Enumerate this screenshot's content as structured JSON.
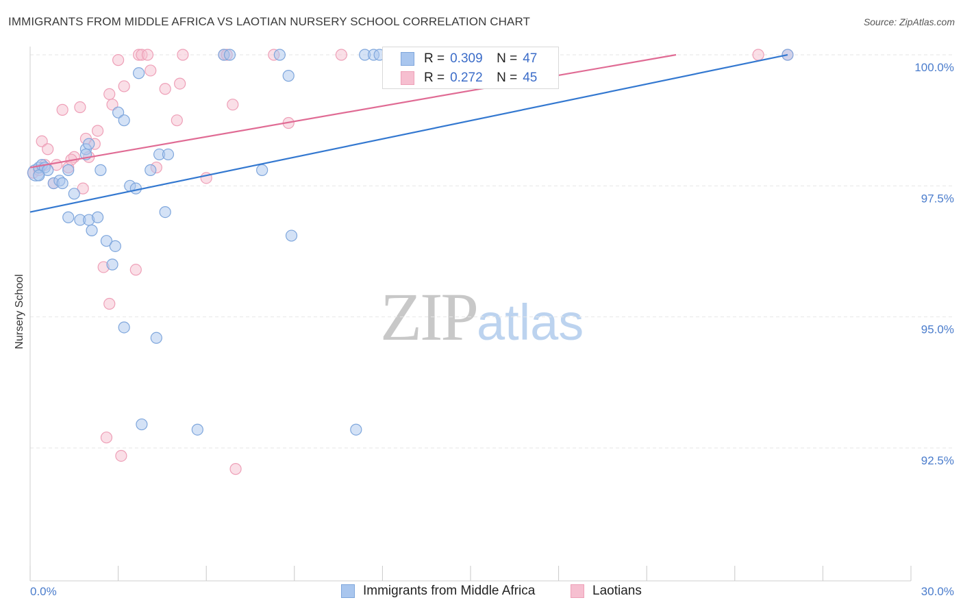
{
  "title": "IMMIGRANTS FROM MIDDLE AFRICA VS LAOTIAN NURSERY SCHOOL CORRELATION CHART",
  "source": "Source: ZipAtlas.com",
  "watermark": {
    "zip": "ZIP",
    "atlas": "atlas"
  },
  "legend": {
    "rows": [
      {
        "r_label": "R =",
        "r": "0.309",
        "n_label": "N =",
        "n": "47"
      },
      {
        "r_label": "R =",
        "r": "0.272",
        "n_label": "N =",
        "n": "45"
      }
    ]
  },
  "bottom_legend": {
    "series1": "Immigrants from Middle Africa",
    "series2": "Laotians"
  },
  "colors": {
    "blue_fill": "#a9c6ee",
    "blue_stroke": "#7ea6dc",
    "blue_line": "#3378d0",
    "pink_fill": "#f6bfd0",
    "pink_stroke": "#ee9fb7",
    "pink_line": "#e06b94",
    "grid": "#e6e6e6",
    "tick_text": "#4a7ccc"
  },
  "chart_data": {
    "type": "scatter",
    "title": "IMMIGRANTS FROM MIDDLE AFRICA VS LAOTIAN NURSERY SCHOOL CORRELATION CHART",
    "xlabel": "",
    "ylabel": "Nursery School",
    "xlim": [
      0,
      30
    ],
    "ylim": [
      90.0,
      100.2
    ],
    "x_tick_labels": [
      "0.0%",
      "30.0%"
    ],
    "y_ticks": [
      92.5,
      95.0,
      97.5,
      100.0
    ],
    "y_tick_labels": [
      "92.5%",
      "95.0%",
      "97.5%",
      "100.0%"
    ],
    "grid": true,
    "legend_position": "top-center",
    "series": [
      {
        "name": "Immigrants from Middle Africa",
        "color": "blue",
        "R": 0.309,
        "N": 47,
        "trend": {
          "x": [
            0,
            25.8
          ],
          "y": [
            97.0,
            100.0
          ]
        },
        "points": [
          [
            0.2,
            97.75
          ],
          [
            0.3,
            97.85
          ],
          [
            0.4,
            97.9
          ],
          [
            0.5,
            97.85
          ],
          [
            0.6,
            97.8
          ],
          [
            0.8,
            97.55
          ],
          [
            1.0,
            97.6
          ],
          [
            1.1,
            97.55
          ],
          [
            1.3,
            96.9
          ],
          [
            1.5,
            97.35
          ],
          [
            1.7,
            96.85
          ],
          [
            1.9,
            98.2
          ],
          [
            2.0,
            98.3
          ],
          [
            2.0,
            96.85
          ],
          [
            2.1,
            96.65
          ],
          [
            2.3,
            96.9
          ],
          [
            2.4,
            97.8
          ],
          [
            2.6,
            96.45
          ],
          [
            2.8,
            96.0
          ],
          [
            2.9,
            96.35
          ],
          [
            3.0,
            98.9
          ],
          [
            3.2,
            98.75
          ],
          [
            3.2,
            94.8
          ],
          [
            3.4,
            97.5
          ],
          [
            3.6,
            97.45
          ],
          [
            3.7,
            99.65
          ],
          [
            3.8,
            92.95
          ],
          [
            4.1,
            97.8
          ],
          [
            4.3,
            94.6
          ],
          [
            4.4,
            98.1
          ],
          [
            4.6,
            97.0
          ],
          [
            4.7,
            98.1
          ],
          [
            5.7,
            92.85
          ],
          [
            6.6,
            100.0
          ],
          [
            6.8,
            100.0
          ],
          [
            7.9,
            97.8
          ],
          [
            8.5,
            100.0
          ],
          [
            8.8,
            99.6
          ],
          [
            8.9,
            96.55
          ],
          [
            11.1,
            92.85
          ],
          [
            11.4,
            100.0
          ],
          [
            11.7,
            100.0
          ],
          [
            11.9,
            100.0
          ],
          [
            1.9,
            98.1
          ],
          [
            0.3,
            97.7
          ],
          [
            1.3,
            97.8
          ],
          [
            25.8,
            100.0
          ]
        ]
      },
      {
        "name": "Laotians",
        "color": "pink",
        "R": 0.272,
        "N": 45,
        "trend": {
          "x": [
            0,
            22.0
          ],
          "y": [
            97.85,
            100.0
          ]
        },
        "points": [
          [
            0.1,
            97.75
          ],
          [
            0.3,
            97.8
          ],
          [
            0.4,
            98.35
          ],
          [
            0.6,
            98.2
          ],
          [
            0.8,
            97.55
          ],
          [
            0.9,
            97.9
          ],
          [
            1.1,
            98.95
          ],
          [
            1.3,
            97.85
          ],
          [
            1.5,
            98.05
          ],
          [
            1.7,
            99.0
          ],
          [
            1.8,
            97.45
          ],
          [
            1.9,
            98.4
          ],
          [
            2.2,
            98.3
          ],
          [
            2.3,
            98.55
          ],
          [
            2.5,
            95.95
          ],
          [
            2.6,
            92.7
          ],
          [
            2.7,
            95.25
          ],
          [
            2.7,
            99.25
          ],
          [
            2.8,
            99.05
          ],
          [
            3.0,
            99.9
          ],
          [
            3.1,
            92.35
          ],
          [
            3.2,
            99.4
          ],
          [
            3.6,
            95.9
          ],
          [
            3.7,
            100.0
          ],
          [
            3.8,
            100.0
          ],
          [
            4.0,
            100.0
          ],
          [
            4.1,
            99.7
          ],
          [
            4.3,
            97.85
          ],
          [
            4.6,
            99.35
          ],
          [
            5.0,
            98.75
          ],
          [
            5.1,
            99.45
          ],
          [
            5.2,
            100.0
          ],
          [
            6.0,
            97.65
          ],
          [
            6.6,
            100.0
          ],
          [
            6.7,
            100.0
          ],
          [
            6.9,
            99.05
          ],
          [
            7.0,
            92.1
          ],
          [
            8.3,
            100.0
          ],
          [
            8.8,
            98.7
          ],
          [
            10.6,
            100.0
          ],
          [
            25.8,
            100.0
          ],
          [
            24.8,
            100.0
          ],
          [
            1.4,
            98.0
          ],
          [
            0.5,
            97.9
          ],
          [
            2.0,
            98.05
          ]
        ]
      }
    ]
  }
}
